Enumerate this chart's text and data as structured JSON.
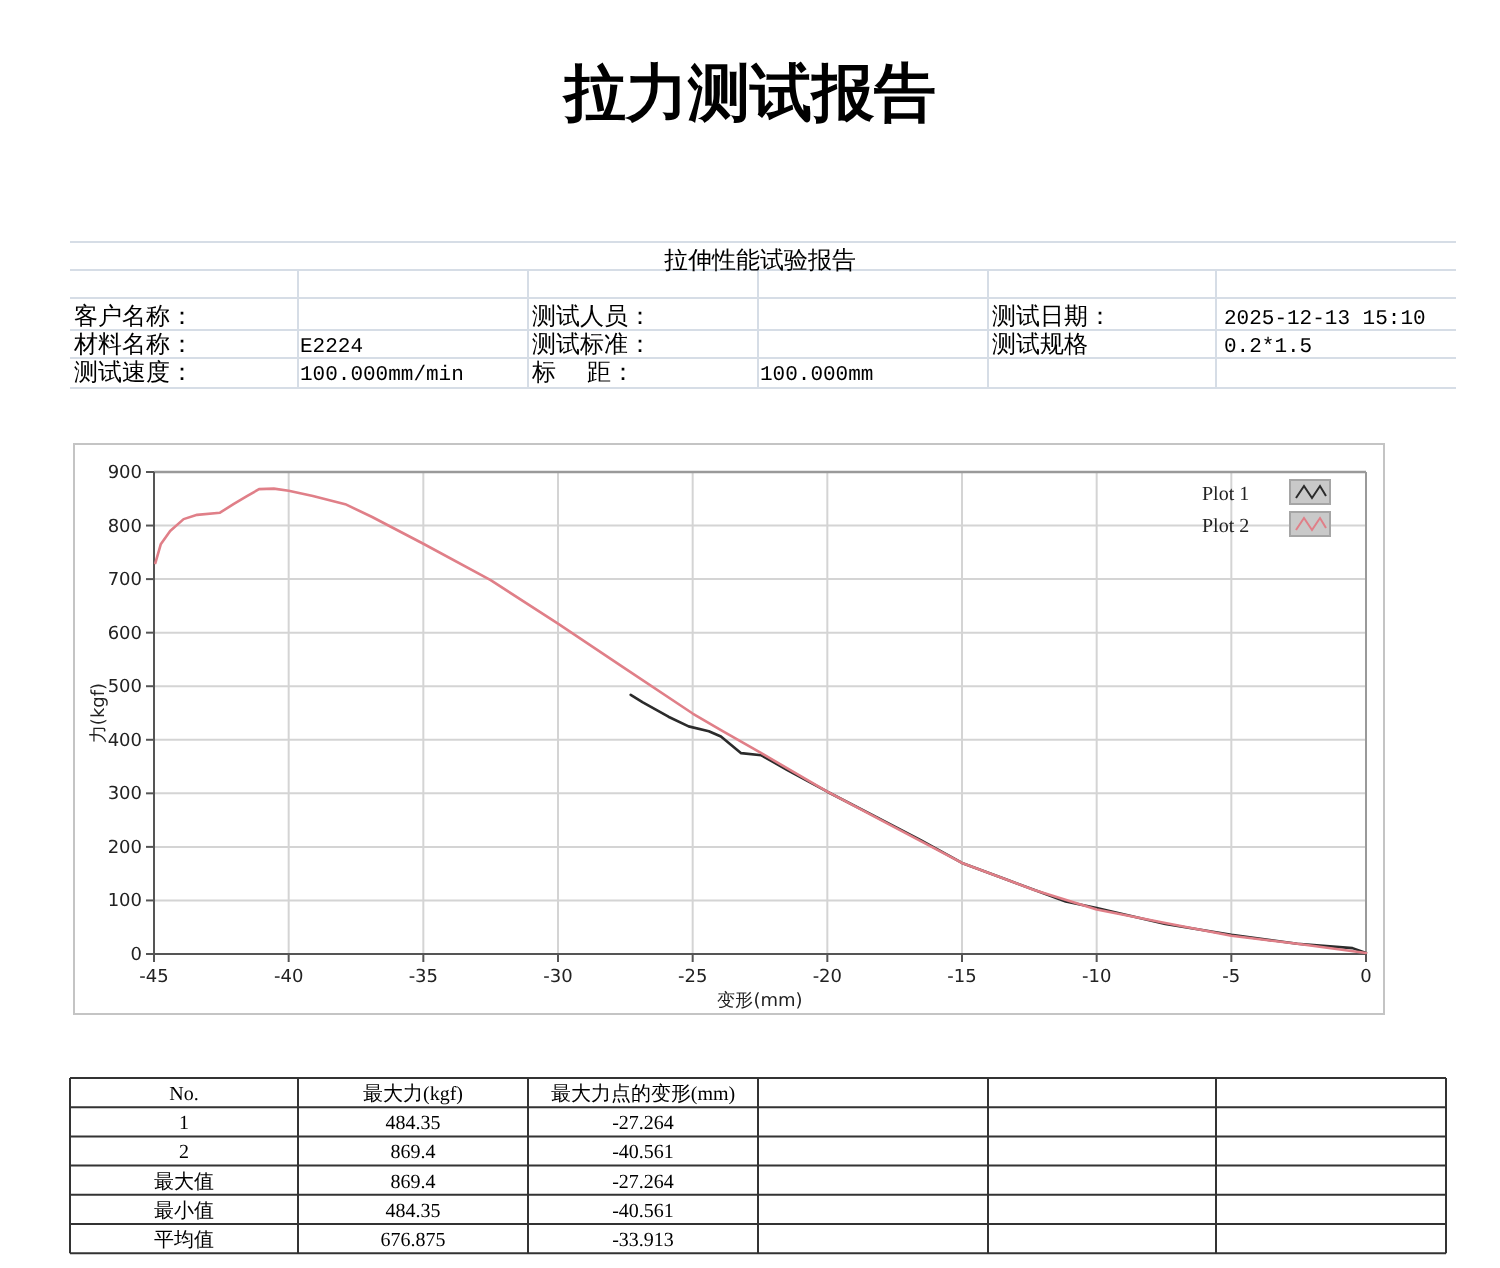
{
  "chart_data": {
    "type": "line",
    "title": "拉力测试报告",
    "subtitle": "拉伸性能试验报告",
    "xlabel": "变形(mm)",
    "ylabel": "力(kgf)",
    "xlim": [
      -45,
      0
    ],
    "xticks": [
      -45,
      -40,
      -35,
      -30,
      -25,
      -20,
      -15,
      -10,
      -5,
      0
    ],
    "ylim": [
      0,
      900
    ],
    "yticks": [
      0,
      100,
      200,
      300,
      400,
      500,
      600,
      700,
      800,
      900
    ],
    "grid": true,
    "legend": "top right",
    "series": [
      {
        "name": "Plot 1",
        "color": "#2b2b2b",
        "x": [
          -27.3,
          -26.85,
          -25.9,
          -25.15,
          -24.4,
          -23.95,
          -23.2,
          -22.45,
          -21.5,
          -20,
          -18.3,
          -16.55,
          -15,
          -13.35,
          -11.15,
          -10,
          -7.45,
          -5,
          -2.55,
          -0.5,
          0
        ],
        "values": [
          484,
          470,
          443,
          425,
          416,
          406,
          375,
          371,
          344,
          303,
          259,
          213,
          170,
          139,
          98,
          86,
          56,
          36,
          19,
          11,
          2
        ]
      },
      {
        "name": "Plot 2",
        "color": "#e07f88",
        "x": [
          -44.95,
          -44.75,
          -44.4,
          -43.9,
          -43.4,
          -42.55,
          -42.05,
          -41.55,
          -41.1,
          -40.55,
          -40,
          -39.1,
          -37.9,
          -36.9,
          -35,
          -32.5,
          -30,
          -27.6,
          -25,
          -23.95,
          -22.45,
          -20,
          -17.55,
          -15,
          -12.35,
          -10,
          -7.45,
          -5,
          -2.55,
          0
        ],
        "values": [
          730,
          765,
          790,
          812,
          820,
          824,
          840,
          855,
          868,
          869,
          865,
          855,
          840,
          816,
          766,
          698,
          617,
          536,
          449,
          418,
          375,
          303,
          238,
          170,
          120,
          83,
          58,
          34,
          19,
          2
        ]
      }
    ],
    "annotations": [
      "客户名称：",
      "测试人员：",
      "测试日期：",
      "2025-12-13 15:10",
      "材料名称：",
      "E2224",
      "测试标准：",
      "测试规格",
      "0.2*1.5",
      "测试速度：",
      "100.000mm/min",
      "标    距：",
      "100.000mm",
      "No.",
      "最大力(kgf)",
      "最大力点的变形(mm)",
      "1",
      "484.35",
      "-27.264",
      "2",
      "869.4",
      "-40.561",
      "最大值",
      "869.4",
      "-27.264",
      "最小值",
      "484.35",
      "-40.561",
      "平均值",
      "676.875",
      "-33.913"
    ]
  }
}
